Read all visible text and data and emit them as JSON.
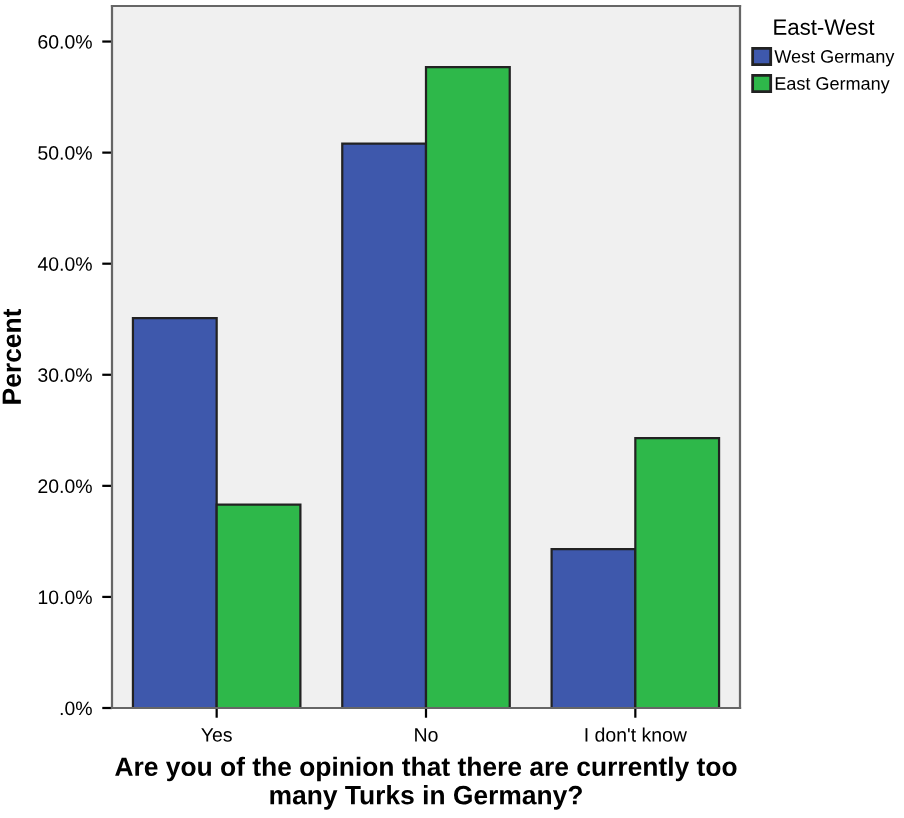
{
  "chart_data": {
    "type": "bar",
    "xlabel": "Are you of the opinion that there are currently too\nmany Turks in Germany?",
    "ylabel": "Percent",
    "legend_title": "East-West",
    "legend": "top right",
    "grid": false,
    "categories": [
      "Yes",
      "No",
      "I don't know"
    ],
    "series": [
      {
        "name": "West Germany",
        "color": "#3e58ac",
        "values": [
          35.1,
          50.8,
          14.3
        ]
      },
      {
        "name": "East Germany",
        "color": "#2eb84a",
        "values": [
          18.3,
          57.7,
          24.3
        ]
      }
    ],
    "ylim": [
      0,
      63.2
    ],
    "yticks": [
      {
        "value": 0,
        "label": ".0%"
      },
      {
        "value": 10,
        "label": "10.0%"
      },
      {
        "value": 20,
        "label": "20.0%"
      },
      {
        "value": 30,
        "label": "30.0%"
      },
      {
        "value": 40,
        "label": "40.0%"
      },
      {
        "value": 50,
        "label": "50.0%"
      },
      {
        "value": 60,
        "label": "60.0%"
      }
    ]
  }
}
